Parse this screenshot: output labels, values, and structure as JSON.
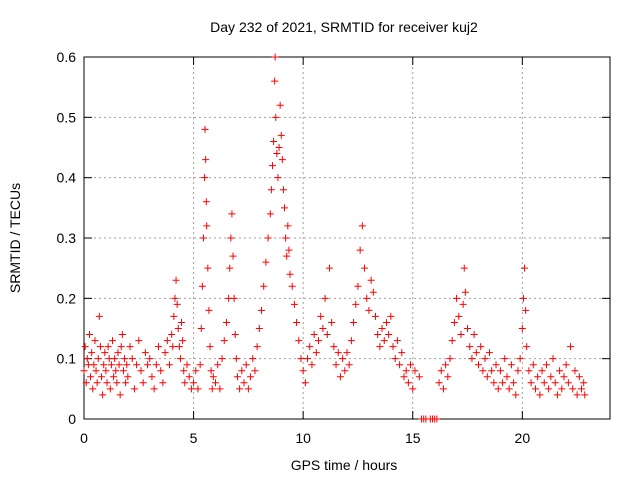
{
  "chart_data": {
    "type": "scatter",
    "title": "Day 232 of 2021, SRMTID for receiver kuj2",
    "xlabel": "GPS time / hours",
    "ylabel": "SRMTID / TECUs",
    "xlim": [
      0,
      24
    ],
    "ylim": [
      0,
      0.6
    ],
    "xticks": [
      0,
      5,
      10,
      15,
      20
    ],
    "xtick_labels": [
      "0",
      "5",
      "10",
      "15",
      "20"
    ],
    "yticks": [
      0,
      0.1,
      0.2,
      0.3,
      0.4,
      0.5,
      0.6
    ],
    "ytick_labels": [
      "0",
      "0.1",
      "0.2",
      "0.3",
      "0.4",
      "0.5",
      "0.6"
    ],
    "grid": true,
    "marker": "+",
    "marker_color": "#ff0000",
    "series": [
      {
        "name": "SRMTID",
        "points": [
          [
            0.0,
            0.08
          ],
          [
            0.05,
            0.12
          ],
          [
            0.1,
            0.06
          ],
          [
            0.15,
            0.1
          ],
          [
            0.2,
            0.09
          ],
          [
            0.25,
            0.14
          ],
          [
            0.3,
            0.07
          ],
          [
            0.35,
            0.11
          ],
          [
            0.4,
            0.05
          ],
          [
            0.45,
            0.09
          ],
          [
            0.5,
            0.13
          ],
          [
            0.55,
            0.08
          ],
          [
            0.6,
            0.06
          ],
          [
            0.65,
            0.1
          ],
          [
            0.7,
            0.17
          ],
          [
            0.75,
            0.12
          ],
          [
            0.8,
            0.07
          ],
          [
            0.85,
            0.04
          ],
          [
            0.9,
            0.09
          ],
          [
            0.95,
            0.11
          ],
          [
            1.0,
            0.08
          ],
          [
            1.05,
            0.06
          ],
          [
            1.1,
            0.12
          ],
          [
            1.15,
            0.1
          ],
          [
            1.2,
            0.05
          ],
          [
            1.25,
            0.09
          ],
          [
            1.3,
            0.13
          ],
          [
            1.35,
            0.07
          ],
          [
            1.4,
            0.1
          ],
          [
            1.45,
            0.08
          ],
          [
            1.5,
            0.06
          ],
          [
            1.55,
            0.11
          ],
          [
            1.6,
            0.09
          ],
          [
            1.65,
            0.04
          ],
          [
            1.7,
            0.12
          ],
          [
            1.75,
            0.14
          ],
          [
            1.8,
            0.08
          ],
          [
            1.85,
            0.1
          ],
          [
            1.9,
            0.06
          ],
          [
            1.95,
            0.09
          ],
          [
            2.0,
            0.07
          ],
          [
            2.1,
            0.12
          ],
          [
            2.2,
            0.1
          ],
          [
            2.3,
            0.05
          ],
          [
            2.4,
            0.09
          ],
          [
            2.5,
            0.13
          ],
          [
            2.6,
            0.08
          ],
          [
            2.7,
            0.06
          ],
          [
            2.8,
            0.11
          ],
          [
            2.9,
            0.09
          ],
          [
            3.0,
            0.1
          ],
          [
            3.1,
            0.07
          ],
          [
            3.2,
            0.05
          ],
          [
            3.3,
            0.09
          ],
          [
            3.4,
            0.12
          ],
          [
            3.5,
            0.08
          ],
          [
            3.6,
            0.06
          ],
          [
            3.7,
            0.11
          ],
          [
            3.8,
            0.13
          ],
          [
            3.9,
            0.09
          ],
          [
            4.0,
            0.14
          ],
          [
            4.05,
            0.12
          ],
          [
            4.1,
            0.17
          ],
          [
            4.15,
            0.2
          ],
          [
            4.2,
            0.23
          ],
          [
            4.25,
            0.19
          ],
          [
            4.3,
            0.15
          ],
          [
            4.35,
            0.12
          ],
          [
            4.4,
            0.1
          ],
          [
            4.45,
            0.16
          ],
          [
            4.5,
            0.13
          ],
          [
            4.55,
            0.08
          ],
          [
            4.6,
            0.06
          ],
          [
            4.7,
            0.09
          ],
          [
            4.8,
            0.07
          ],
          [
            4.9,
            0.05
          ],
          [
            5.0,
            0.06
          ],
          [
            5.1,
            0.08
          ],
          [
            5.2,
            0.05
          ],
          [
            5.3,
            0.09
          ],
          [
            5.35,
            0.15
          ],
          [
            5.4,
            0.22
          ],
          [
            5.45,
            0.3
          ],
          [
            5.5,
            0.4
          ],
          [
            5.52,
            0.48
          ],
          [
            5.55,
            0.43
          ],
          [
            5.58,
            0.36
          ],
          [
            5.6,
            0.32
          ],
          [
            5.65,
            0.25
          ],
          [
            5.7,
            0.18
          ],
          [
            5.75,
            0.12
          ],
          [
            5.8,
            0.08
          ],
          [
            5.85,
            0.05
          ],
          [
            5.9,
            0.07
          ],
          [
            6.0,
            0.06
          ],
          [
            6.1,
            0.09
          ],
          [
            6.2,
            0.05
          ],
          [
            6.3,
            0.1
          ],
          [
            6.4,
            0.13
          ],
          [
            6.5,
            0.16
          ],
          [
            6.6,
            0.2
          ],
          [
            6.65,
            0.25
          ],
          [
            6.7,
            0.3
          ],
          [
            6.75,
            0.34
          ],
          [
            6.8,
            0.27
          ],
          [
            6.85,
            0.2
          ],
          [
            6.9,
            0.14
          ],
          [
            6.95,
            0.1
          ],
          [
            7.0,
            0.07
          ],
          [
            7.1,
            0.05
          ],
          [
            7.2,
            0.08
          ],
          [
            7.3,
            0.06
          ],
          [
            7.4,
            0.09
          ],
          [
            7.5,
            0.05
          ],
          [
            7.6,
            0.07
          ],
          [
            7.7,
            0.1
          ],
          [
            7.8,
            0.08
          ],
          [
            7.9,
            0.12
          ],
          [
            8.0,
            0.15
          ],
          [
            8.1,
            0.18
          ],
          [
            8.2,
            0.22
          ],
          [
            8.3,
            0.26
          ],
          [
            8.4,
            0.3
          ],
          [
            8.5,
            0.34
          ],
          [
            8.55,
            0.38
          ],
          [
            8.6,
            0.42
          ],
          [
            8.65,
            0.46
          ],
          [
            8.7,
            0.56
          ],
          [
            8.72,
            0.6
          ],
          [
            8.75,
            0.5
          ],
          [
            8.8,
            0.44
          ],
          [
            8.85,
            0.4
          ],
          [
            8.9,
            0.45
          ],
          [
            8.95,
            0.52
          ],
          [
            9.0,
            0.47
          ],
          [
            9.05,
            0.43
          ],
          [
            9.1,
            0.38
          ],
          [
            9.15,
            0.35
          ],
          [
            9.2,
            0.3
          ],
          [
            9.25,
            0.27
          ],
          [
            9.3,
            0.32
          ],
          [
            9.35,
            0.28
          ],
          [
            9.4,
            0.24
          ],
          [
            9.5,
            0.22
          ],
          [
            9.6,
            0.19
          ],
          [
            9.7,
            0.16
          ],
          [
            9.8,
            0.13
          ],
          [
            9.9,
            0.1
          ],
          [
            10.0,
            0.08
          ],
          [
            10.1,
            0.06
          ],
          [
            10.2,
            0.1
          ],
          [
            10.3,
            0.12
          ],
          [
            10.4,
            0.09
          ],
          [
            10.5,
            0.14
          ],
          [
            10.6,
            0.11
          ],
          [
            10.7,
            0.13
          ],
          [
            10.8,
            0.17
          ],
          [
            10.9,
            0.15
          ],
          [
            11.0,
            0.2
          ],
          [
            11.1,
            0.14
          ],
          [
            11.2,
            0.25
          ],
          [
            11.3,
            0.16
          ],
          [
            11.4,
            0.12
          ],
          [
            11.5,
            0.09
          ],
          [
            11.6,
            0.11
          ],
          [
            11.7,
            0.07
          ],
          [
            11.8,
            0.1
          ],
          [
            11.9,
            0.08
          ],
          [
            12.0,
            0.11
          ],
          [
            12.1,
            0.09
          ],
          [
            12.2,
            0.13
          ],
          [
            12.3,
            0.16
          ],
          [
            12.4,
            0.19
          ],
          [
            12.5,
            0.22
          ],
          [
            12.6,
            0.28
          ],
          [
            12.7,
            0.32
          ],
          [
            12.8,
            0.25
          ],
          [
            12.9,
            0.2
          ],
          [
            13.0,
            0.18
          ],
          [
            13.1,
            0.23
          ],
          [
            13.2,
            0.21
          ],
          [
            13.3,
            0.17
          ],
          [
            13.4,
            0.14
          ],
          [
            13.5,
            0.12
          ],
          [
            13.6,
            0.15
          ],
          [
            13.7,
            0.13
          ],
          [
            13.8,
            0.16
          ],
          [
            13.9,
            0.14
          ],
          [
            14.0,
            0.17
          ],
          [
            14.1,
            0.12
          ],
          [
            14.2,
            0.1
          ],
          [
            14.3,
            0.13
          ],
          [
            14.4,
            0.09
          ],
          [
            14.5,
            0.11
          ],
          [
            14.6,
            0.07
          ],
          [
            14.7,
            0.08
          ],
          [
            14.8,
            0.06
          ],
          [
            14.9,
            0.09
          ],
          [
            15.0,
            0.05
          ],
          [
            15.1,
            0.08
          ],
          [
            15.3,
            0.07
          ],
          [
            15.4,
            0.0
          ],
          [
            15.5,
            0.0
          ],
          [
            15.6,
            0.0
          ],
          [
            15.8,
            0.0
          ],
          [
            15.9,
            0.0
          ],
          [
            16.0,
            0.0
          ],
          [
            16.1,
            0.0
          ],
          [
            16.2,
            0.06
          ],
          [
            16.3,
            0.08
          ],
          [
            16.4,
            0.05
          ],
          [
            16.5,
            0.09
          ],
          [
            16.6,
            0.07
          ],
          [
            16.7,
            0.1
          ],
          [
            16.8,
            0.13
          ],
          [
            16.9,
            0.16
          ],
          [
            17.0,
            0.2
          ],
          [
            17.1,
            0.17
          ],
          [
            17.2,
            0.14
          ],
          [
            17.3,
            0.19
          ],
          [
            17.35,
            0.25
          ],
          [
            17.4,
            0.21
          ],
          [
            17.5,
            0.15
          ],
          [
            17.6,
            0.12
          ],
          [
            17.7,
            0.1
          ],
          [
            17.8,
            0.14
          ],
          [
            17.9,
            0.11
          ],
          [
            18.0,
            0.09
          ],
          [
            18.1,
            0.12
          ],
          [
            18.2,
            0.08
          ],
          [
            18.3,
            0.1
          ],
          [
            18.4,
            0.07
          ],
          [
            18.5,
            0.11
          ],
          [
            18.6,
            0.08
          ],
          [
            18.7,
            0.06
          ],
          [
            18.8,
            0.09
          ],
          [
            18.9,
            0.05
          ],
          [
            19.0,
            0.08
          ],
          [
            19.1,
            0.06
          ],
          [
            19.2,
            0.1
          ],
          [
            19.3,
            0.07
          ],
          [
            19.4,
            0.05
          ],
          [
            19.5,
            0.09
          ],
          [
            19.6,
            0.06
          ],
          [
            19.7,
            0.04
          ],
          [
            19.8,
            0.08
          ],
          [
            19.9,
            0.1
          ],
          [
            20.0,
            0.15
          ],
          [
            20.05,
            0.2
          ],
          [
            20.1,
            0.25
          ],
          [
            20.15,
            0.18
          ],
          [
            20.2,
            0.12
          ],
          [
            20.3,
            0.08
          ],
          [
            20.4,
            0.06
          ],
          [
            20.5,
            0.09
          ],
          [
            20.6,
            0.05
          ],
          [
            20.7,
            0.07
          ],
          [
            20.8,
            0.04
          ],
          [
            20.9,
            0.08
          ],
          [
            21.0,
            0.06
          ],
          [
            21.1,
            0.09
          ],
          [
            21.2,
            0.05
          ],
          [
            21.3,
            0.07
          ],
          [
            21.4,
            0.1
          ],
          [
            21.5,
            0.06
          ],
          [
            21.6,
            0.04
          ],
          [
            21.7,
            0.08
          ],
          [
            21.8,
            0.05
          ],
          [
            21.9,
            0.07
          ],
          [
            22.0,
            0.09
          ],
          [
            22.1,
            0.06
          ],
          [
            22.2,
            0.12
          ],
          [
            22.3,
            0.05
          ],
          [
            22.4,
            0.08
          ],
          [
            22.5,
            0.04
          ],
          [
            22.6,
            0.07
          ],
          [
            22.7,
            0.05
          ],
          [
            22.8,
            0.06
          ],
          [
            22.85,
            0.04
          ]
        ]
      }
    ]
  }
}
